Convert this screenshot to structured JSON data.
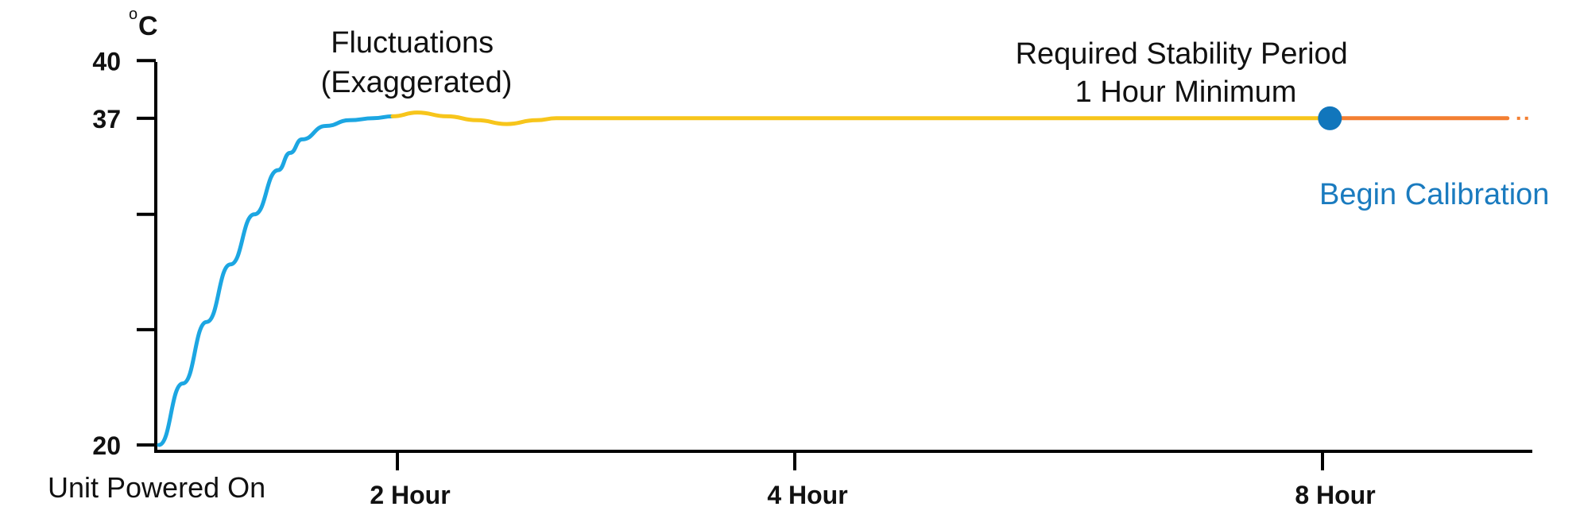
{
  "chart_data": {
    "type": "line",
    "y_unit_degree": "o",
    "y_unit": "C",
    "x_ticks": [
      {
        "x": 2,
        "label": "2 Hour"
      },
      {
        "x": 4,
        "label": "4 Hour"
      },
      {
        "x": 8,
        "label": "8 Hour"
      }
    ],
    "x_origin_label": "Unit Powered On",
    "y_ticks": [
      {
        "y": 20,
        "label": "20"
      },
      {
        "y": 37,
        "label": "37"
      },
      {
        "y": 40,
        "label": "40"
      }
    ],
    "y_minor_ticks": [
      26,
      32
    ],
    "ylim": [
      20,
      41.5
    ],
    "xlim": [
      0,
      9.1
    ],
    "series": [
      {
        "color": "#1ca6e2",
        "x": [
          0.0,
          0.2,
          0.4,
          0.6,
          0.8,
          1.0,
          1.1,
          1.2,
          1.4,
          1.6,
          1.8,
          1.96
        ],
        "y": [
          20.0,
          23.2,
          26.4,
          29.4,
          32.0,
          34.3,
          35.2,
          35.9,
          36.6,
          36.9,
          37.0,
          37.1
        ]
      },
      {
        "color": "#f7c51b",
        "x": [
          1.96,
          2.1,
          2.25,
          2.4,
          2.55,
          2.7,
          2.8,
          3.0,
          5.0,
          7.0,
          8.04
        ],
        "y": [
          37.1,
          37.3,
          37.1,
          36.9,
          36.7,
          36.9,
          37.0,
          37.0,
          37.0,
          37.0,
          37.0
        ]
      },
      {
        "color": "#f37f32",
        "x": [
          8.04,
          9.0
        ],
        "y": [
          37.0,
          37.0
        ]
      }
    ],
    "marker": {
      "x": 8.04,
      "y": 37.0,
      "color": "#1176bc",
      "label": "Begin Calibration"
    },
    "annotations": [
      {
        "lines": [
          "Fluctuations",
          "(Exaggerated)"
        ]
      },
      {
        "lines": [
          "Required Stability Period",
          "1 Hour Minimum"
        ]
      }
    ]
  }
}
